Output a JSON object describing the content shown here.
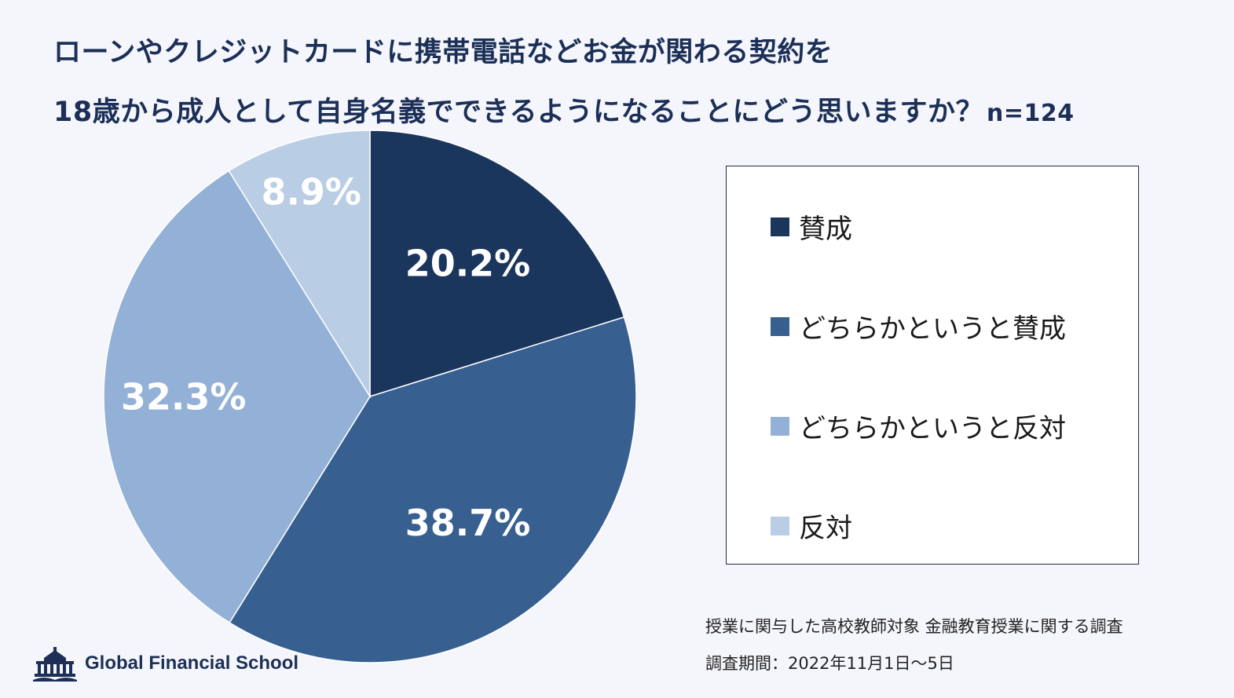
{
  "header": {
    "title_line1": "ローンやクレジットカードに携帯電話などお金が関わる契約を",
    "title_line2": "18歳から成人として自身名義でできるようになることにどう思いますか？",
    "sample_size": "n=124"
  },
  "chart_data": {
    "type": "pie",
    "start": "12 o'clock",
    "direction": "clockwise",
    "categories": [
      "賛成",
      "どちらかというと賛成",
      "どちらかというと反対",
      "反対"
    ],
    "values": [
      20.2,
      38.7,
      32.3,
      8.9
    ],
    "labels": [
      "20.2%",
      "38.7%",
      "32.3%",
      "8.9%"
    ],
    "colors": [
      "#1b365d",
      "#375f90",
      "#93b1d6",
      "#b9cde5"
    ],
    "legend_position": "right"
  },
  "legend": {
    "items": [
      {
        "label": "賛成",
        "color": "#1b365d"
      },
      {
        "label": "どちらかというと賛成",
        "color": "#375f90"
      },
      {
        "label": "どちらかというと反対",
        "color": "#93b1d6"
      },
      {
        "label": "反対",
        "color": "#b9cde5"
      }
    ]
  },
  "footer": {
    "survey_description": "授業に関与した高校教師対象 金融教育授業に関する調査",
    "survey_period": "調査期間：2022年11月1日〜5日"
  },
  "brand": {
    "name": "Global Financial School",
    "icon": "school-building-icon",
    "color": "#1b2f57"
  }
}
